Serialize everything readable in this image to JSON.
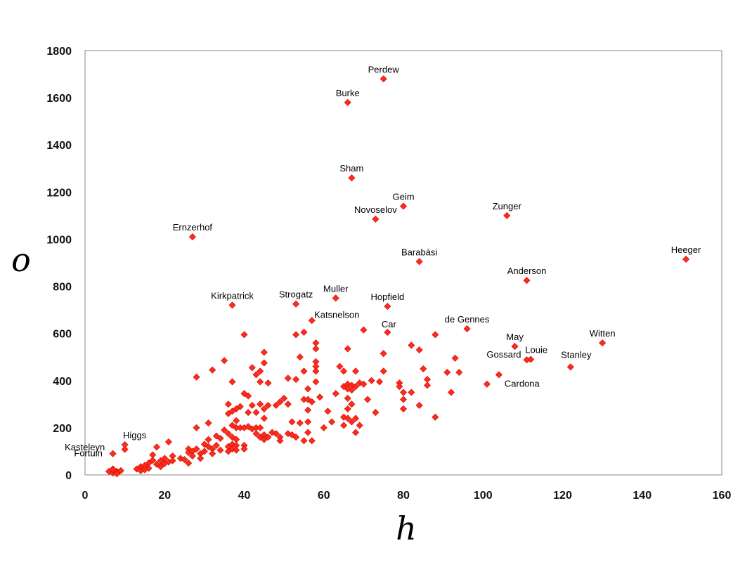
{
  "chart_data": {
    "type": "scatter",
    "title": "",
    "xlabel": "h",
    "ylabel": "o",
    "xlim": [
      0,
      160
    ],
    "ylim": [
      0,
      1800
    ],
    "xticks": [
      0,
      20,
      40,
      60,
      80,
      100,
      120,
      140,
      160
    ],
    "yticks": [
      0,
      200,
      400,
      600,
      800,
      1000,
      1200,
      1400,
      1600,
      1800
    ],
    "grid": false,
    "legend": "none",
    "point_color": "#ff2a1a",
    "labeled_points": [
      {
        "label": "Perdew",
        "x": 75,
        "y": 1680
      },
      {
        "label": "Burke",
        "x": 66,
        "y": 1580
      },
      {
        "label": "Sham",
        "x": 67,
        "y": 1260
      },
      {
        "label": "Geim",
        "x": 80,
        "y": 1140
      },
      {
        "label": "Novoselov",
        "x": 73,
        "y": 1085
      },
      {
        "label": "Zunger",
        "x": 106,
        "y": 1100
      },
      {
        "label": "Ernzerhof",
        "x": 27,
        "y": 1010
      },
      {
        "label": "Barabási",
        "x": 84,
        "y": 905
      },
      {
        "label": "Heeger",
        "x": 151,
        "y": 915
      },
      {
        "label": "Anderson",
        "x": 111,
        "y": 825
      },
      {
        "label": "Kirkpatrick",
        "x": 37,
        "y": 720
      },
      {
        "label": "Strogatz",
        "x": 53,
        "y": 725
      },
      {
        "label": "Muller",
        "x": 63,
        "y": 750
      },
      {
        "label": "Hopfield",
        "x": 76,
        "y": 715
      },
      {
        "label": "Katsnelson",
        "x": 70,
        "y": 615
      },
      {
        "label": "Car",
        "x": 76,
        "y": 605
      },
      {
        "label": "de Gennes",
        "x": 96,
        "y": 620
      },
      {
        "label": "May",
        "x": 108,
        "y": 545
      },
      {
        "label": "Witten",
        "x": 130,
        "y": 560
      },
      {
        "label": "Louie",
        "x": 112,
        "y": 490
      },
      {
        "label": "Stanley",
        "x": 122,
        "y": 458
      },
      {
        "label": "Gossard",
        "x": 111,
        "y": 488
      },
      {
        "label": "Cardona",
        "x": 104,
        "y": 425
      },
      {
        "label": "Higgs",
        "x": 10,
        "y": 128
      },
      {
        "label": "Kasteleyn",
        "x": 7,
        "y": 90
      },
      {
        "label": "Fortuin",
        "x": 7,
        "y": 22
      }
    ],
    "points": [
      [
        6,
        15
      ],
      [
        7,
        8
      ],
      [
        7,
        25
      ],
      [
        8,
        15
      ],
      [
        8,
        5
      ],
      [
        9,
        18
      ],
      [
        10,
        108
      ],
      [
        13,
        25
      ],
      [
        14,
        35
      ],
      [
        14,
        18
      ],
      [
        15,
        40
      ],
      [
        15,
        22
      ],
      [
        16,
        50
      ],
      [
        16,
        28
      ],
      [
        17,
        85
      ],
      [
        17,
        62
      ],
      [
        18,
        118
      ],
      [
        18,
        45
      ],
      [
        19,
        60
      ],
      [
        19,
        35
      ],
      [
        20,
        70
      ],
      [
        20,
        48
      ],
      [
        21,
        140
      ],
      [
        21,
        55
      ],
      [
        22,
        80
      ],
      [
        22,
        60
      ],
      [
        24,
        70
      ],
      [
        25,
        65
      ],
      [
        26,
        110
      ],
      [
        26,
        95
      ],
      [
        26,
        50
      ],
      [
        27,
        100
      ],
      [
        27,
        80
      ],
      [
        28,
        415
      ],
      [
        28,
        200
      ],
      [
        28,
        110
      ],
      [
        29,
        90
      ],
      [
        29,
        70
      ],
      [
        30,
        130
      ],
      [
        30,
        100
      ],
      [
        31,
        220
      ],
      [
        31,
        150
      ],
      [
        31,
        120
      ],
      [
        32,
        445
      ],
      [
        32,
        110
      ],
      [
        32,
        90
      ],
      [
        33,
        165
      ],
      [
        33,
        125
      ],
      [
        34,
        155
      ],
      [
        34,
        105
      ],
      [
        35,
        485
      ],
      [
        35,
        190
      ],
      [
        36,
        300
      ],
      [
        36,
        260
      ],
      [
        36,
        175
      ],
      [
        36,
        120
      ],
      [
        36,
        100
      ],
      [
        37,
        395
      ],
      [
        37,
        270
      ],
      [
        37,
        210
      ],
      [
        37,
        160
      ],
      [
        37,
        130
      ],
      [
        37,
        110
      ],
      [
        38,
        280
      ],
      [
        38,
        230
      ],
      [
        38,
        200
      ],
      [
        38,
        150
      ],
      [
        38,
        125
      ],
      [
        38,
        105
      ],
      [
        39,
        290
      ],
      [
        39,
        200
      ],
      [
        40,
        595
      ],
      [
        40,
        345
      ],
      [
        40,
        200
      ],
      [
        40,
        125
      ],
      [
        40,
        110
      ],
      [
        41,
        335
      ],
      [
        41,
        265
      ],
      [
        41,
        205
      ],
      [
        42,
        455
      ],
      [
        42,
        295
      ],
      [
        42,
        195
      ],
      [
        43,
        425
      ],
      [
        43,
        265
      ],
      [
        43,
        200
      ],
      [
        43,
        175
      ],
      [
        44,
        440
      ],
      [
        44,
        395
      ],
      [
        44,
        300
      ],
      [
        44,
        200
      ],
      [
        44,
        160
      ],
      [
        45,
        520
      ],
      [
        45,
        475
      ],
      [
        45,
        280
      ],
      [
        45,
        240
      ],
      [
        45,
        170
      ],
      [
        45,
        150
      ],
      [
        46,
        390
      ],
      [
        46,
        295
      ],
      [
        46,
        160
      ],
      [
        47,
        180
      ],
      [
        48,
        295
      ],
      [
        48,
        175
      ],
      [
        49,
        310
      ],
      [
        49,
        160
      ],
      [
        49,
        145
      ],
      [
        50,
        325
      ],
      [
        51,
        410
      ],
      [
        51,
        300
      ],
      [
        51,
        175
      ],
      [
        52,
        225
      ],
      [
        52,
        170
      ],
      [
        53,
        595
      ],
      [
        53,
        405
      ],
      [
        53,
        160
      ],
      [
        54,
        500
      ],
      [
        54,
        220
      ],
      [
        55,
        605
      ],
      [
        55,
        440
      ],
      [
        55,
        320
      ],
      [
        55,
        145
      ],
      [
        56,
        365
      ],
      [
        56,
        320
      ],
      [
        56,
        275
      ],
      [
        56,
        225
      ],
      [
        56,
        180
      ],
      [
        57,
        655
      ],
      [
        57,
        310
      ],
      [
        57,
        145
      ],
      [
        58,
        560
      ],
      [
        58,
        535
      ],
      [
        58,
        480
      ],
      [
        58,
        460
      ],
      [
        58,
        440
      ],
      [
        58,
        395
      ],
      [
        59,
        330
      ],
      [
        60,
        200
      ],
      [
        61,
        270
      ],
      [
        62,
        225
      ],
      [
        63,
        345
      ],
      [
        64,
        460
      ],
      [
        65,
        440
      ],
      [
        65,
        375
      ],
      [
        65,
        245
      ],
      [
        65,
        210
      ],
      [
        66,
        535
      ],
      [
        66,
        385
      ],
      [
        66,
        365
      ],
      [
        66,
        325
      ],
      [
        66,
        280
      ],
      [
        66,
        240
      ],
      [
        67,
        380
      ],
      [
        67,
        360
      ],
      [
        67,
        300
      ],
      [
        67,
        225
      ],
      [
        68,
        440
      ],
      [
        68,
        375
      ],
      [
        68,
        240
      ],
      [
        68,
        180
      ],
      [
        69,
        390
      ],
      [
        69,
        210
      ],
      [
        70,
        385
      ],
      [
        71,
        320
      ],
      [
        72,
        400
      ],
      [
        73,
        265
      ],
      [
        74,
        395
      ],
      [
        75,
        515
      ],
      [
        75,
        440
      ],
      [
        79,
        390
      ],
      [
        79,
        375
      ],
      [
        80,
        350
      ],
      [
        80,
        320
      ],
      [
        80,
        280
      ],
      [
        82,
        550
      ],
      [
        82,
        350
      ],
      [
        84,
        530
      ],
      [
        84,
        295
      ],
      [
        85,
        450
      ],
      [
        86,
        405
      ],
      [
        86,
        380
      ],
      [
        88,
        595
      ],
      [
        88,
        245
      ],
      [
        91,
        435
      ],
      [
        92,
        350
      ],
      [
        93,
        495
      ],
      [
        94,
        435
      ],
      [
        101,
        385
      ]
    ]
  }
}
